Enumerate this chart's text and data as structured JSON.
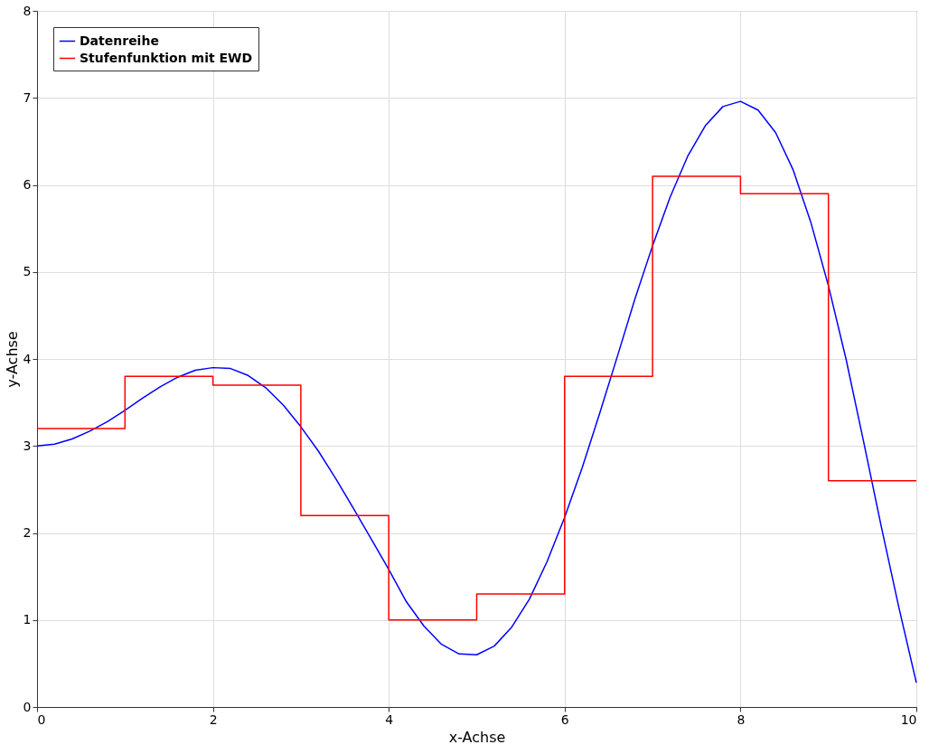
{
  "chart_data": {
    "type": "line",
    "xlabel": "x-Achse",
    "ylabel": "y-Achse",
    "xlim": [
      0,
      10
    ],
    "ylim": [
      0,
      8
    ],
    "xticks": [
      0,
      2,
      4,
      6,
      8,
      10
    ],
    "yticks": [
      0,
      1,
      2,
      3,
      4,
      5,
      6,
      7,
      8
    ],
    "grid": true,
    "legend": "top left",
    "series": [
      {
        "name": "Datenreihe",
        "color": "#0000ff",
        "x": [
          0,
          0.2,
          0.4,
          0.6,
          0.8,
          1.0,
          1.2,
          1.4,
          1.6,
          1.8,
          2.0,
          2.2,
          2.4,
          2.6,
          2.8,
          3.0,
          3.2,
          3.4,
          3.6,
          3.8,
          4.0,
          4.2,
          4.4,
          4.6,
          4.8,
          5.0,
          5.2,
          5.4,
          5.6,
          5.8,
          6.0,
          6.2,
          6.4,
          6.6,
          6.8,
          7.0,
          7.2,
          7.4,
          7.6,
          7.8,
          8.0,
          8.2,
          8.4,
          8.6,
          8.8,
          9.0,
          9.2,
          9.4,
          9.6,
          9.8,
          10
        ],
        "values": [
          3.0,
          3.02,
          3.08,
          3.17,
          3.28,
          3.41,
          3.55,
          3.68,
          3.79,
          3.87,
          3.9,
          3.89,
          3.81,
          3.67,
          3.47,
          3.22,
          2.94,
          2.62,
          2.28,
          1.93,
          1.58,
          1.21,
          0.93,
          0.72,
          0.61,
          0.6,
          0.7,
          0.92,
          1.24,
          1.67,
          2.18,
          2.75,
          3.38,
          4.03,
          4.69,
          5.3,
          5.86,
          6.33,
          6.68,
          6.9,
          6.96,
          6.86,
          6.6,
          6.17,
          5.57,
          4.84,
          4.0,
          3.05,
          2.08,
          1.15,
          0.28
        ]
      },
      {
        "name": "Stufenfunktion mit EWD",
        "color": "#ff0000",
        "type": "step",
        "x": [
          0,
          1,
          2,
          3,
          4,
          5,
          6,
          7,
          8,
          9,
          10
        ],
        "values": [
          3.2,
          3.8,
          3.7,
          2.2,
          1.0,
          1.3,
          3.8,
          6.1,
          5.9,
          2.6,
          2.6
        ]
      }
    ]
  }
}
